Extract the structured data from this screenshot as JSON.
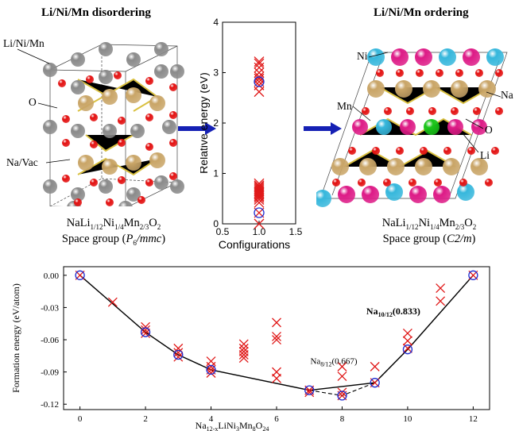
{
  "left_panel": {
    "title": "Li/Ni/Mn disordering",
    "labels": {
      "site_a": "Li/Ni/Mn",
      "site_b": "O",
      "site_c": "Na/Vac"
    },
    "formula": {
      "na": "NaLi",
      "li_sub": "1/12",
      "ni": "Ni",
      "ni_sub": "1/4",
      "mn": "Mn",
      "mn_sub": "2/3",
      "o": "O",
      "o_sub": "2"
    },
    "space_group": {
      "prefix": "Space group (",
      "symbol": "P",
      "sub": "6",
      "suffix_italic": "/mmc",
      "close": ")"
    }
  },
  "right_panel": {
    "title": "Li/Ni/Mn ordering",
    "labels": {
      "ni": "Ni",
      "mn": "Mn",
      "na": "Na",
      "o": "O",
      "li": "Li"
    },
    "formula": {
      "na": "NaLi",
      "li_sub": "1/12",
      "ni": "Ni",
      "ni_sub": "1/4",
      "mn": "Mn",
      "mn_sub": "2/3",
      "o": "O",
      "o_sub": "2"
    },
    "space_group": {
      "prefix": "Space group (",
      "symbol": "C2/m",
      "close": ")"
    }
  },
  "colors": {
    "li_ni_mn_site": "#8a8a8a",
    "oxygen": "#e31010",
    "sodium": "#c9a567",
    "nickel": "#36b7dc",
    "manganese": "#dd1a86",
    "lithium": "#18c418",
    "arrow": "#1520b4",
    "cross": "#e01818",
    "circle": "#1d2bd0"
  },
  "chart_data": [
    {
      "type": "scatter",
      "ylabel": "Relative energy (eV)",
      "xlabel": "Configurations",
      "xlim": [
        0.5,
        1.5
      ],
      "ylim": [
        0,
        4
      ],
      "xticks": [
        "0.5",
        "1.0",
        "1.5"
      ],
      "yticks": [
        "0",
        "1",
        "2",
        "3",
        "4"
      ],
      "x": 1.0,
      "crosses": [
        0.0,
        0.22,
        0.42,
        0.48,
        0.52,
        0.55,
        0.58,
        0.61,
        0.64,
        0.67,
        0.7,
        0.73,
        0.76,
        0.8,
        2.62,
        2.75,
        2.82,
        2.88,
        2.92,
        3.0,
        3.1,
        3.18,
        3.22
      ],
      "circles": [
        0.22,
        2.82
      ]
    },
    {
      "type": "scatter",
      "ylabel": "Formation energy (eV/atom)",
      "xlabel": {
        "base": "Na",
        "sub1": "12-x",
        "mid": "LiNi",
        "sub2": "3",
        "mid2": "Mn",
        "sub3": "8",
        "end": "O",
        "sub4": "24"
      },
      "xlim": [
        -0.5,
        12.5
      ],
      "ylim": [
        -0.125,
        0.008
      ],
      "xticks": [
        "0",
        "2",
        "4",
        "6",
        "8",
        "10",
        "12"
      ],
      "yticks": [
        "0.00",
        "-0.03",
        "-0.06",
        "-0.09",
        "-0.12"
      ],
      "crosses": [
        [
          0,
          0.0
        ],
        [
          1,
          -0.025
        ],
        [
          2,
          -0.048
        ],
        [
          2,
          -0.051
        ],
        [
          2,
          -0.054
        ],
        [
          3,
          -0.068
        ],
        [
          3,
          -0.072
        ],
        [
          3,
          -0.076
        ],
        [
          4,
          -0.08
        ],
        [
          4,
          -0.085
        ],
        [
          4,
          -0.088
        ],
        [
          4,
          -0.091
        ],
        [
          5,
          -0.064
        ],
        [
          5,
          -0.068
        ],
        [
          5,
          -0.071
        ],
        [
          5,
          -0.074
        ],
        [
          5,
          -0.077
        ],
        [
          6,
          -0.044
        ],
        [
          6,
          -0.057
        ],
        [
          6,
          -0.06
        ],
        [
          6,
          -0.09
        ],
        [
          6,
          -0.096
        ],
        [
          7,
          -0.107
        ],
        [
          7,
          -0.109
        ],
        [
          8,
          -0.085
        ],
        [
          8,
          -0.094
        ],
        [
          8,
          -0.109
        ],
        [
          8,
          -0.112
        ],
        [
          9,
          -0.085
        ],
        [
          9,
          -0.1
        ],
        [
          10,
          -0.054
        ],
        [
          10,
          -0.061
        ],
        [
          10,
          -0.068
        ],
        [
          11,
          -0.012
        ],
        [
          11,
          -0.024
        ],
        [
          12,
          0.0
        ]
      ],
      "circles": [
        [
          0,
          0.0
        ],
        [
          2,
          -0.053
        ],
        [
          3,
          -0.074
        ],
        [
          4,
          -0.088
        ],
        [
          7,
          -0.107
        ],
        [
          8,
          -0.112
        ],
        [
          9,
          -0.1
        ],
        [
          10,
          -0.069
        ],
        [
          12,
          0.0
        ]
      ],
      "hull_solid": [
        [
          0,
          0.0
        ],
        [
          2,
          -0.053
        ],
        [
          3,
          -0.074
        ],
        [
          4,
          -0.088
        ],
        [
          7,
          -0.107
        ],
        [
          9,
          -0.1
        ],
        [
          10,
          -0.069
        ],
        [
          12,
          0.0
        ]
      ],
      "hull_dashed": [
        [
          7,
          -0.107
        ],
        [
          8,
          -0.112
        ],
        [
          9,
          -0.1
        ],
        [
          10,
          -0.069
        ],
        [
          12,
          0.0
        ]
      ],
      "annotations": [
        {
          "base": "Na",
          "sub": "10/12",
          "value": "(0.833)",
          "x": 10,
          "y": -0.069
        },
        {
          "base": "Na",
          "sub": "8/12",
          "value": "(0.667)",
          "x": 8,
          "y": -0.112
        }
      ]
    }
  ]
}
